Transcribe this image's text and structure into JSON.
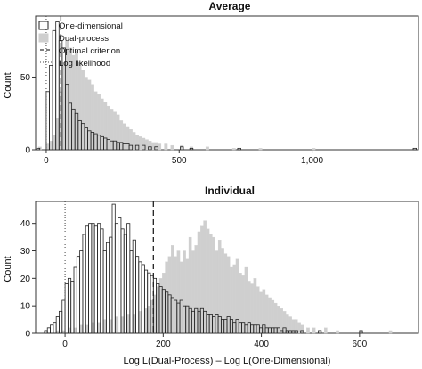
{
  "chart_data": [
    {
      "type": "histogram",
      "title": "Average",
      "xlabel": "",
      "ylabel": "Count",
      "xlim": [
        -40,
        1400
      ],
      "ylim": [
        0,
        92
      ],
      "bin_width": 12,
      "x_ticks": [
        {
          "value": 0,
          "label": "0"
        },
        {
          "value": 500,
          "label": "500"
        },
        {
          "value": 1000,
          "label": "1,000"
        }
      ],
      "y_ticks": [
        {
          "value": 0,
          "label": "0"
        },
        {
          "value": 50,
          "label": "50"
        }
      ],
      "reference_lines": [
        {
          "name": "Optimal criterion",
          "x": 55,
          "style": "dashed"
        },
        {
          "name": "Log likelihood",
          "x": 0,
          "style": "dotted"
        }
      ],
      "legend": {
        "position": "top-left",
        "entries": [
          {
            "label": "One-dimensional",
            "style": "outline"
          },
          {
            "label": "Dual-process",
            "style": "filled"
          },
          {
            "label": "Optimal criterion",
            "style": "dashed"
          },
          {
            "label": "Log likelihood",
            "style": "dotted"
          }
        ]
      },
      "series": [
        {
          "name": "One-dimensional",
          "style": "outline",
          "bin_starts": [
            -36,
            0,
            12,
            24,
            36,
            48,
            60,
            72,
            84,
            96,
            108,
            120,
            132,
            144,
            156,
            168,
            180,
            192,
            204,
            216,
            228,
            240,
            252,
            264,
            276,
            288,
            300,
            312,
            336,
            360,
            384,
            408,
            504,
            540,
            720,
            1380
          ],
          "counts": [
            1,
            40,
            58,
            82,
            88,
            75,
            70,
            45,
            32,
            28,
            25,
            20,
            18,
            15,
            13,
            12,
            11,
            10,
            9,
            8,
            7,
            6,
            6,
            5,
            5,
            4,
            4,
            3,
            3,
            3,
            2,
            2,
            2,
            1,
            1,
            1
          ]
        },
        {
          "name": "Dual-process",
          "style": "filled",
          "bin_starts": [
            -30,
            0,
            12,
            24,
            36,
            48,
            60,
            72,
            84,
            96,
            108,
            120,
            132,
            144,
            156,
            168,
            180,
            192,
            204,
            216,
            228,
            240,
            252,
            264,
            276,
            288,
            300,
            312,
            324,
            336,
            348,
            360,
            372,
            384,
            396,
            408,
            420,
            444,
            468,
            504,
            540,
            600,
            700,
            800,
            1000
          ],
          "counts": [
            2,
            4,
            6,
            10,
            22,
            40,
            60,
            75,
            70,
            65,
            68,
            60,
            55,
            50,
            48,
            45,
            40,
            38,
            35,
            33,
            30,
            28,
            26,
            24,
            20,
            18,
            16,
            14,
            12,
            10,
            9,
            8,
            7,
            6,
            5,
            5,
            4,
            4,
            3,
            3,
            2,
            2,
            1,
            1,
            1
          ]
        }
      ]
    },
    {
      "type": "histogram",
      "title": "Individual",
      "xlabel": "Log L(Dual-Process) – Log L(One-Dimensional)",
      "ylabel": "Count",
      "xlim": [
        -60,
        720
      ],
      "ylim": [
        0,
        48
      ],
      "bin_width": 6,
      "x_ticks": [
        {
          "value": 0,
          "label": "0"
        },
        {
          "value": 200,
          "label": "200"
        },
        {
          "value": 400,
          "label": "400"
        },
        {
          "value": 600,
          "label": "600"
        }
      ],
      "y_ticks": [
        {
          "value": 0,
          "label": "0"
        },
        {
          "value": 10,
          "label": "10"
        },
        {
          "value": 20,
          "label": "20"
        },
        {
          "value": 30,
          "label": "30"
        },
        {
          "value": 40,
          "label": "40"
        }
      ],
      "reference_lines": [
        {
          "name": "Optimal criterion",
          "x": 180,
          "style": "dashed"
        },
        {
          "name": "Log likelihood",
          "x": 0,
          "style": "dotted"
        }
      ],
      "series": [
        {
          "name": "One-dimensional",
          "style": "outline",
          "bin_starts": [
            -42,
            -36,
            -30,
            -24,
            -18,
            -12,
            -6,
            0,
            6,
            12,
            18,
            24,
            30,
            36,
            42,
            48,
            54,
            60,
            66,
            72,
            78,
            84,
            90,
            96,
            102,
            108,
            114,
            120,
            126,
            132,
            138,
            144,
            150,
            156,
            162,
            168,
            174,
            180,
            186,
            192,
            198,
            204,
            210,
            216,
            222,
            228,
            234,
            240,
            246,
            252,
            258,
            264,
            270,
            276,
            282,
            288,
            294,
            300,
            306,
            312,
            318,
            324,
            330,
            336,
            342,
            348,
            354,
            360,
            366,
            372,
            378,
            384,
            390,
            396,
            402,
            408,
            414,
            420,
            426,
            432,
            438,
            444,
            450,
            456,
            462,
            468,
            480,
            516,
            600
          ],
          "counts": [
            1,
            2,
            3,
            4,
            6,
            8,
            12,
            18,
            20,
            19,
            24,
            28,
            30,
            36,
            39,
            40,
            40,
            39,
            40,
            38,
            30,
            33,
            35,
            47,
            40,
            42,
            38,
            36,
            40,
            30,
            34,
            28,
            26,
            25,
            23,
            22,
            21,
            20,
            18,
            17,
            16,
            15,
            14,
            13,
            12,
            11,
            12,
            10,
            10,
            9,
            8,
            9,
            8,
            9,
            8,
            7,
            7,
            6,
            7,
            6,
            5,
            5,
            6,
            5,
            4,
            5,
            4,
            4,
            3,
            4,
            3,
            3,
            3,
            2,
            3,
            2,
            2,
            2,
            2,
            2,
            1,
            2,
            1,
            1,
            1,
            1,
            1,
            1,
            1
          ]
        },
        {
          "name": "Dual-process",
          "style": "filled",
          "bin_starts": [
            -18,
            -6,
            6,
            18,
            30,
            42,
            54,
            66,
            78,
            90,
            102,
            114,
            126,
            138,
            150,
            162,
            168,
            174,
            180,
            186,
            192,
            198,
            204,
            210,
            216,
            222,
            228,
            234,
            240,
            246,
            252,
            258,
            264,
            270,
            276,
            282,
            288,
            294,
            300,
            306,
            312,
            318,
            324,
            330,
            336,
            342,
            348,
            354,
            360,
            366,
            372,
            378,
            384,
            390,
            396,
            402,
            408,
            414,
            420,
            426,
            432,
            438,
            444,
            450,
            456,
            462,
            468,
            474,
            480,
            492,
            504,
            528,
            552,
            600,
            660
          ],
          "counts": [
            1,
            1,
            2,
            2,
            3,
            3,
            4,
            4,
            5,
            5,
            6,
            6,
            7,
            7,
            8,
            9,
            10,
            12,
            14,
            17,
            20,
            22,
            26,
            28,
            32,
            28,
            30,
            26,
            30,
            27,
            35,
            30,
            32,
            37,
            39,
            41,
            38,
            36,
            35,
            30,
            34,
            31,
            29,
            28,
            24,
            25,
            27,
            22,
            21,
            24,
            19,
            18,
            20,
            17,
            15,
            16,
            14,
            13,
            12,
            11,
            10,
            9,
            8,
            7,
            6,
            5,
            5,
            4,
            3,
            2,
            2,
            2,
            1,
            1,
            1
          ]
        }
      ]
    }
  ]
}
